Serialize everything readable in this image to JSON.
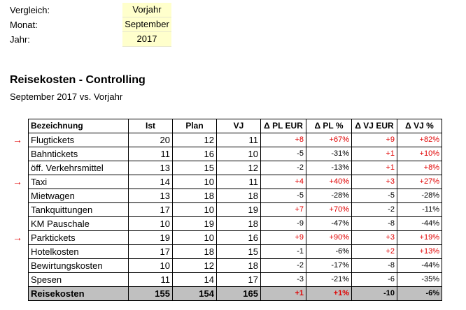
{
  "params": [
    {
      "label": "Vergleich:",
      "value": "Vorjahr"
    },
    {
      "label": "Monat:",
      "value": "September"
    },
    {
      "label": "Jahr:",
      "value": "2017"
    }
  ],
  "report": {
    "title": "Reisekosten - Controlling",
    "subtitle": "September 2017 vs. Vorjahr"
  },
  "table": {
    "headers": [
      "Bezeichnung",
      "Ist",
      "Plan",
      "VJ",
      "Δ PL EUR",
      "Δ PL %",
      "Δ VJ EUR",
      "Δ VJ %"
    ],
    "rows": [
      {
        "name": "Flugtickets",
        "ist": "20",
        "plan": "12",
        "vj": "11",
        "dpl_eur": "+8",
        "dpl_pct": "+67%",
        "dvj_eur": "+9",
        "dvj_pct": "+82%",
        "flag": true
      },
      {
        "name": "Bahntickets",
        "ist": "11",
        "plan": "16",
        "vj": "10",
        "dpl_eur": "-5",
        "dpl_pct": "-31%",
        "dvj_eur": "+1",
        "dvj_pct": "+10%",
        "flag": false
      },
      {
        "name": "öff. Verkehrsmittel",
        "ist": "13",
        "plan": "15",
        "vj": "12",
        "dpl_eur": "-2",
        "dpl_pct": "-13%",
        "dvj_eur": "+1",
        "dvj_pct": "+8%",
        "flag": false
      },
      {
        "name": "Taxi",
        "ist": "14",
        "plan": "10",
        "vj": "11",
        "dpl_eur": "+4",
        "dpl_pct": "+40%",
        "dvj_eur": "+3",
        "dvj_pct": "+27%",
        "flag": true
      },
      {
        "name": "Mietwagen",
        "ist": "13",
        "plan": "18",
        "vj": "18",
        "dpl_eur": "-5",
        "dpl_pct": "-28%",
        "dvj_eur": "-5",
        "dvj_pct": "-28%",
        "flag": false
      },
      {
        "name": "Tankquittungen",
        "ist": "17",
        "plan": "10",
        "vj": "19",
        "dpl_eur": "+7",
        "dpl_pct": "+70%",
        "dvj_eur": "-2",
        "dvj_pct": "-11%",
        "flag": false
      },
      {
        "name": "KM Pauschale",
        "ist": "10",
        "plan": "19",
        "vj": "18",
        "dpl_eur": "-9",
        "dpl_pct": "-47%",
        "dvj_eur": "-8",
        "dvj_pct": "-44%",
        "flag": false
      },
      {
        "name": "Parktickets",
        "ist": "19",
        "plan": "10",
        "vj": "16",
        "dpl_eur": "+9",
        "dpl_pct": "+90%",
        "dvj_eur": "+3",
        "dvj_pct": "+19%",
        "flag": true
      },
      {
        "name": "Hotelkosten",
        "ist": "17",
        "plan": "18",
        "vj": "15",
        "dpl_eur": "-1",
        "dpl_pct": "-6%",
        "dvj_eur": "+2",
        "dvj_pct": "+13%",
        "flag": false
      },
      {
        "name": "Bewirtungskosten",
        "ist": "10",
        "plan": "12",
        "vj": "18",
        "dpl_eur": "-2",
        "dpl_pct": "-17%",
        "dvj_eur": "-8",
        "dvj_pct": "-44%",
        "flag": false
      },
      {
        "name": "Spesen",
        "ist": "11",
        "plan": "14",
        "vj": "17",
        "dpl_eur": "-3",
        "dpl_pct": "-21%",
        "dvj_eur": "-6",
        "dvj_pct": "-35%",
        "flag": false
      }
    ],
    "total": {
      "name": "Reisekosten",
      "ist": "155",
      "plan": "154",
      "vj": "165",
      "dpl_eur": "+1",
      "dpl_pct": "+1%",
      "dvj_eur": "-10",
      "dvj_pct": "-6%"
    }
  },
  "colors": {
    "positive": "#e00000",
    "negative": "#000000",
    "input_fill": "#ffffcc",
    "total_fill": "#c0c0c0"
  },
  "icons": {
    "flag": "right-arrow-icon"
  }
}
